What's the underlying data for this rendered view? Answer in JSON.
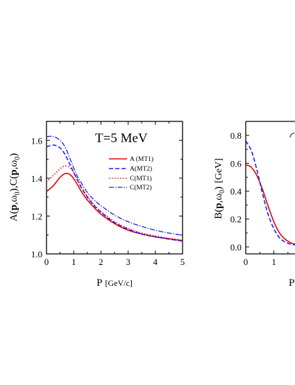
{
  "chart_data": [
    {
      "type": "line",
      "annotation": "T=5 MeV",
      "xlabel": "P [GeV/c]",
      "xlabel_main": "P",
      "xlabel_unit": "[GeV/c]",
      "ylabel": "A(p,ω0),C(p,ω0)",
      "xlim": [
        0,
        5
      ],
      "ylim": [
        1.0,
        1.7
      ],
      "xticks": [
        "0",
        "1",
        "2",
        "3",
        "4",
        "5"
      ],
      "yticks": [
        "1.0",
        "1.2",
        "1.4",
        "1.6"
      ],
      "legend_position": "right",
      "series": [
        {
          "name": "A (MT1)",
          "color": "#e00000",
          "style": "solid",
          "x": [
            0,
            0.25,
            0.5,
            0.7,
            0.9,
            1.1,
            1.3,
            1.5,
            1.75,
            2.0,
            2.5,
            3.0,
            3.5,
            4.0,
            4.5,
            5.0
          ],
          "y": [
            1.33,
            1.36,
            1.405,
            1.425,
            1.415,
            1.375,
            1.325,
            1.285,
            1.245,
            1.21,
            1.16,
            1.125,
            1.105,
            1.09,
            1.08,
            1.07
          ]
        },
        {
          "name": "A(MT2)",
          "color": "#1a1aff",
          "style": "dashed",
          "x": [
            0,
            0.25,
            0.5,
            0.7,
            0.9,
            1.1,
            1.3,
            1.5,
            1.75,
            2.0,
            2.5,
            3.0,
            3.5,
            4.0,
            4.5,
            5.0
          ],
          "y": [
            1.565,
            1.575,
            1.56,
            1.52,
            1.46,
            1.4,
            1.345,
            1.3,
            1.255,
            1.22,
            1.165,
            1.13,
            1.105,
            1.09,
            1.078,
            1.068
          ]
        },
        {
          "name": "C(MT1)",
          "color": "#e00000",
          "style": "dotted",
          "x": [
            0,
            0.25,
            0.5,
            0.7,
            0.9,
            1.1,
            1.3,
            1.5,
            1.75,
            2.0,
            2.5,
            3.0,
            3.5,
            4.0,
            4.5,
            5.0
          ],
          "y": [
            1.38,
            1.415,
            1.45,
            1.465,
            1.45,
            1.405,
            1.35,
            1.305,
            1.26,
            1.225,
            1.17,
            1.135,
            1.11,
            1.095,
            1.082,
            1.072
          ]
        },
        {
          "name": "C(MT2)",
          "color": "#1a1aff",
          "style": "dashdot",
          "x": [
            0,
            0.25,
            0.5,
            0.7,
            0.9,
            1.1,
            1.3,
            1.5,
            1.75,
            2.0,
            2.5,
            3.0,
            3.5,
            4.0,
            4.5,
            5.0
          ],
          "y": [
            1.62,
            1.62,
            1.6,
            1.56,
            1.49,
            1.42,
            1.37,
            1.325,
            1.285,
            1.255,
            1.205,
            1.17,
            1.145,
            1.125,
            1.11,
            1.098
          ]
        }
      ]
    },
    {
      "type": "line",
      "xlabel": "P",
      "ylabel": "B(p,ω0) [GeV]",
      "ylabel_unit": "[GeV]",
      "xlim": [
        0,
        1.75
      ],
      "ylim": [
        -0.05,
        0.9
      ],
      "xticks": [
        "0",
        "1"
      ],
      "yticks": [
        "0.0",
        "0.2",
        "0.4",
        "0.6",
        "0.8"
      ],
      "series": [
        {
          "color": "#e00000",
          "style": "solid",
          "x": [
            0,
            0.2,
            0.4,
            0.6,
            0.8,
            1.0,
            1.2,
            1.4,
            1.6,
            1.75
          ],
          "y": [
            0.59,
            0.57,
            0.51,
            0.41,
            0.29,
            0.18,
            0.1,
            0.055,
            0.03,
            0.02
          ]
        },
        {
          "color": "#1a1aff",
          "style": "dashed",
          "x": [
            0,
            0.2,
            0.4,
            0.6,
            0.8,
            1.0,
            1.2,
            1.4,
            1.6,
            1.75
          ],
          "y": [
            0.76,
            0.69,
            0.55,
            0.38,
            0.23,
            0.13,
            0.065,
            0.035,
            0.02,
            0.015
          ]
        }
      ]
    }
  ]
}
